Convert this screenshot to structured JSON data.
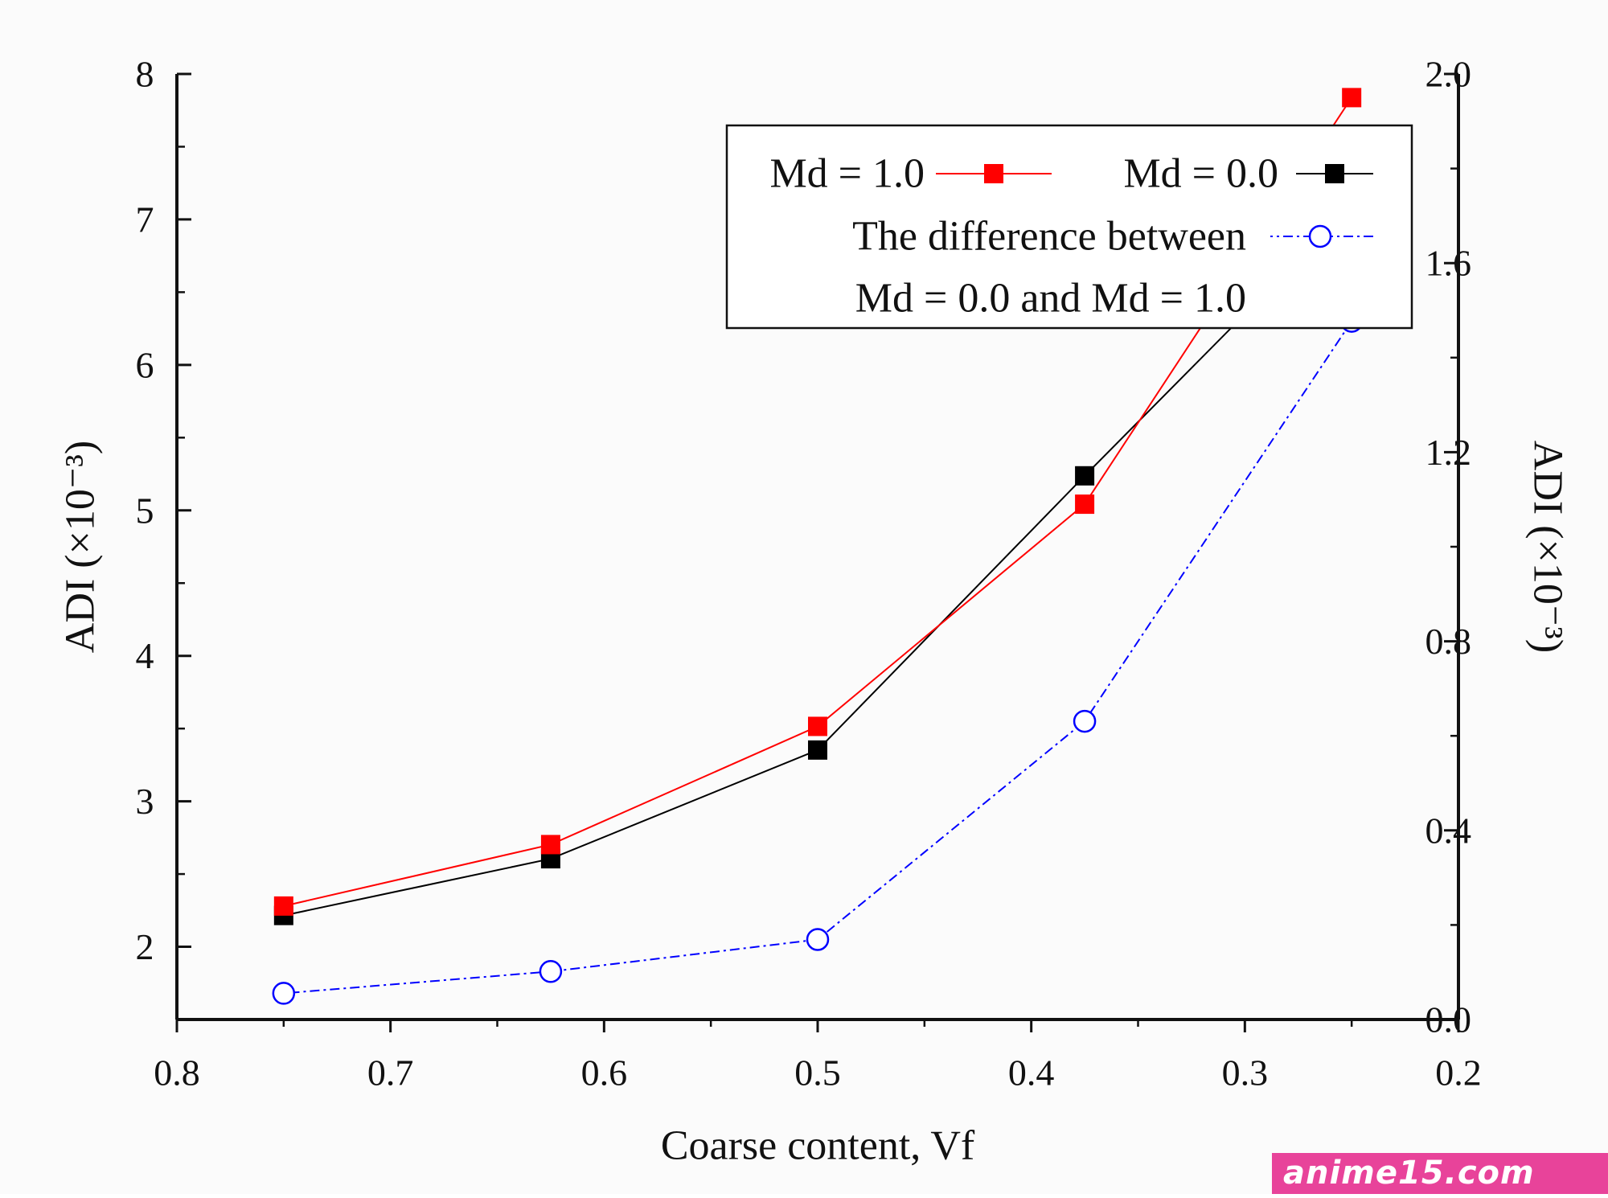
{
  "chart_data": {
    "type": "line",
    "title": "",
    "xlabel": "Coarse content, Vf",
    "ylabel_left": "ADI (×10⁻³)",
    "ylabel_right": "ADI (×10⁻³)",
    "xlim": [
      0.2,
      0.8
    ],
    "ylim_left": [
      0.0,
      2.0
    ],
    "ylim_right": [
      1.5,
      8.0
    ],
    "x_axis_reversed_visual": true,
    "image_mirrored": true,
    "x_ticks": [
      "0.2",
      "0.3",
      "0.4",
      "0.5",
      "0.6",
      "0.7",
      "0.8"
    ],
    "y_ticks_left": [
      "0.0",
      "0.4",
      "0.8",
      "1.2",
      "1.6",
      "2.0"
    ],
    "y_ticks_right": [
      "2",
      "3",
      "4",
      "5",
      "6",
      "7",
      "8"
    ],
    "x": [
      0.25,
      0.375,
      0.5,
      0.625,
      0.75
    ],
    "series": [
      {
        "name": "Md = 0.0",
        "axis": "left",
        "marker": "filled-square",
        "color": "#000000",
        "line": "solid",
        "values": [
          1.72,
          1.15,
          0.57,
          0.34,
          0.22
        ]
      },
      {
        "name": "Md = 1.0",
        "axis": "left",
        "marker": "filled-square",
        "color": "#ff0000",
        "line": "solid",
        "values": [
          1.95,
          1.09,
          0.62,
          0.37,
          0.24
        ]
      },
      {
        "name": "The difference between Md = 0.0 and Md = 1.0",
        "axis": "right",
        "marker": "open-circle",
        "color": "#0000ff",
        "line": "dash-dot",
        "values": [
          6.3,
          3.55,
          2.05,
          1.83,
          1.68
        ]
      }
    ],
    "legend": {
      "placement": "top-left",
      "entries": [
        {
          "label": "Md = 0.0",
          "series": 0
        },
        {
          "label": "Md = 1.0",
          "series": 1
        },
        {
          "label_lines": [
            "The difference between",
            "Md = 0.0 and Md = 1.0"
          ],
          "series": 2
        }
      ]
    },
    "grid": false
  },
  "watermark": "anime15.com"
}
